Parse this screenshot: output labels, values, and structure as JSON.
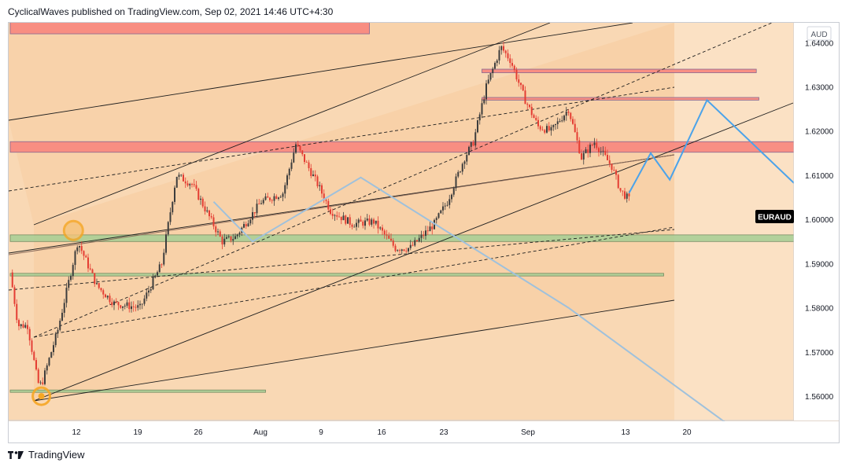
{
  "header": {
    "author": "CyclicalWaves",
    "published_text": "published on TradingView.com, Sep 02, 2021 14:46 UTC+4:30"
  },
  "footer": {
    "brand": "TradingView"
  },
  "colors": {
    "background": "#fbe1c4",
    "channel_fill": "#f6c998",
    "resistance_zone": "#f8877e",
    "support_zone": "#a6cf95",
    "projection_line": "#4ba3ea",
    "faded_projection": "#9fc1dc",
    "bull_candle": "#3d3d3d",
    "bear_candle": "#e43d33",
    "symbol_label_bg": "#000000"
  },
  "chart_data": {
    "type": "candlestick",
    "symbol": "EURAUD",
    "quote_currency": "AUD",
    "last_price_label": "EURAUD",
    "x_tick_labels": [
      "12",
      "19",
      "26",
      "Aug",
      "9",
      "16",
      "23",
      "Sep",
      "13",
      "20"
    ],
    "y_tick_labels": [
      "1.64000",
      "1.63000",
      "1.62000",
      "1.61000",
      "1.60000",
      "1.59000",
      "1.58000",
      "1.57000",
      "1.56000"
    ],
    "ylim": [
      1.5545,
      1.6445
    ],
    "price_path": [
      [
        0,
        1.588
      ],
      [
        0.9,
        1.576
      ],
      [
        2.0,
        1.576
      ],
      [
        3.2,
        1.563
      ],
      [
        3.6,
        1.5625
      ],
      [
        5.5,
        1.575
      ],
      [
        7.8,
        1.595
      ],
      [
        10.0,
        1.585
      ],
      [
        12.0,
        1.581
      ],
      [
        15.0,
        1.58
      ],
      [
        17.5,
        1.59
      ],
      [
        19.2,
        1.61
      ],
      [
        21.0,
        1.608
      ],
      [
        24.5,
        1.595
      ],
      [
        26.0,
        1.596
      ],
      [
        29.0,
        1.604
      ],
      [
        31.5,
        1.606
      ],
      [
        33.0,
        1.617
      ],
      [
        35.5,
        1.608
      ],
      [
        37.0,
        1.602
      ],
      [
        39.5,
        1.599
      ],
      [
        42.0,
        1.5995
      ],
      [
        44.5,
        1.5935
      ],
      [
        46.2,
        1.5935
      ],
      [
        49.0,
        1.599
      ],
      [
        50.5,
        1.604
      ],
      [
        52.5,
        1.614
      ],
      [
        53.5,
        1.6175
      ],
      [
        55.0,
        1.63
      ],
      [
        56.7,
        1.639
      ],
      [
        57.8,
        1.636
      ],
      [
        59.5,
        1.627
      ],
      [
        61.0,
        1.621
      ],
      [
        62.5,
        1.62
      ],
      [
        64.5,
        1.625
      ],
      [
        66.0,
        1.614
      ],
      [
        67.5,
        1.6175
      ],
      [
        69.5,
        1.612
      ],
      [
        70.5,
        1.6065
      ],
      [
        71.5,
        1.6045
      ]
    ],
    "resistance_zones": [
      {
        "from_day": 0,
        "to_day": 41.5,
        "low": 1.642,
        "high": 1.646
      },
      {
        "from_day": 0,
        "to_day": 107,
        "low": 1.6152,
        "high": 1.6176
      },
      {
        "from_day": 54.5,
        "to_day": 86.2,
        "low": 1.6332,
        "high": 1.634
      },
      {
        "from_day": 54.5,
        "to_day": 86.5,
        "low": 1.627,
        "high": 1.6276
      }
    ],
    "support_zones": [
      {
        "from_day": 0,
        "to_day": 107,
        "low": 1.595,
        "high": 1.5965
      },
      {
        "from_day": 0,
        "to_day": 75.5,
        "low": 1.5872,
        "high": 1.5878
      },
      {
        "from_day": 0,
        "to_day": 29.5,
        "low": 1.5609,
        "high": 1.5614
      }
    ],
    "projected_path": [
      [
        71.5,
        1.606
      ],
      [
        74.0,
        1.615
      ],
      [
        76.2,
        1.609
      ],
      [
        80.5,
        1.627
      ],
      [
        107,
        1.5775
      ]
    ],
    "faded_projection_path": [
      [
        23.5,
        1.604
      ],
      [
        28.0,
        1.595
      ],
      [
        40.5,
        1.6095
      ],
      [
        64.5,
        1.58
      ],
      [
        83.0,
        1.5535
      ]
    ],
    "bottom_marker_day": 3.6,
    "bottom_marker_price": 1.56,
    "swing_marker_day": 7.3,
    "swing_marker_price": 1.5975
  }
}
